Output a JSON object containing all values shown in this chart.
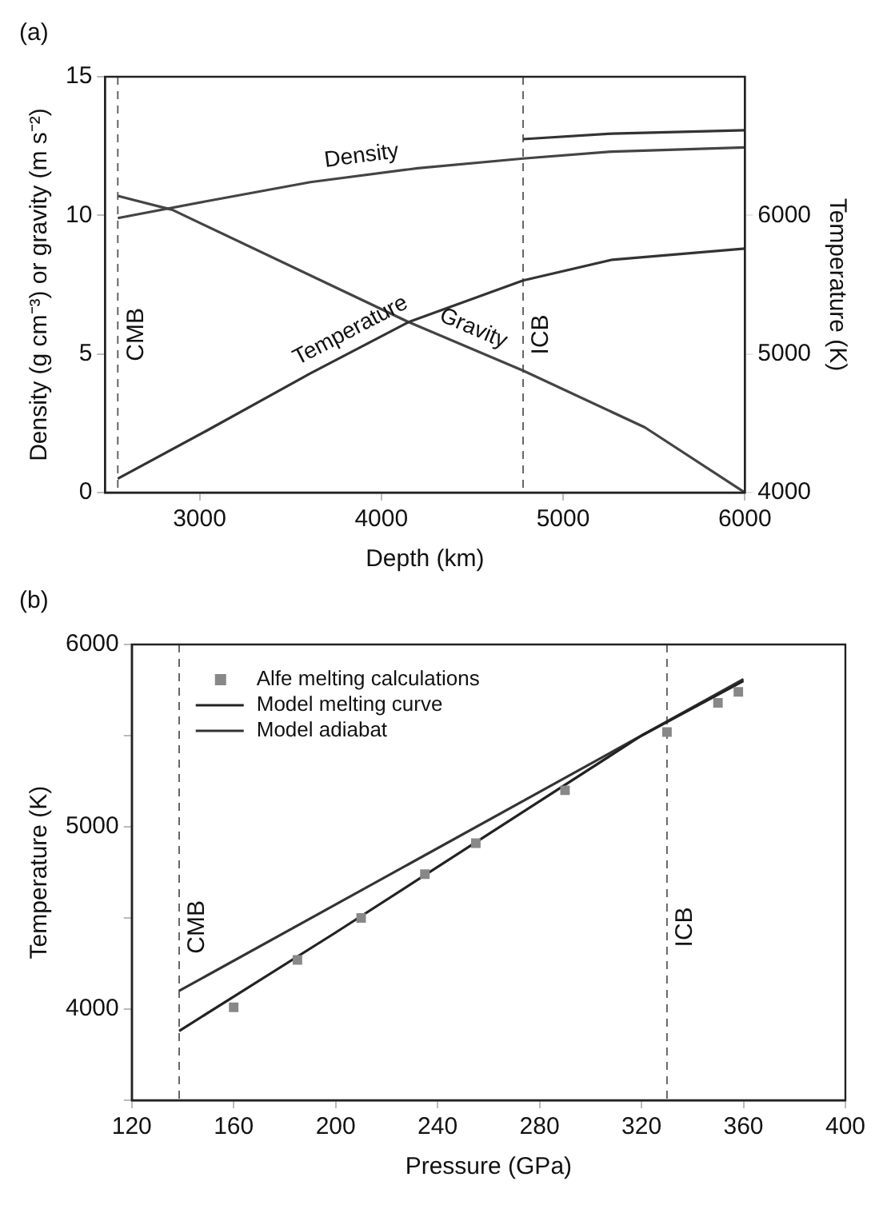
{
  "chart_data": [
    {
      "type": "line",
      "title": "(a)",
      "xlabel": "Depth (km)",
      "ylabel": "Density (g cm⁻³) or gravity (m s⁻²)",
      "y2label": "Temperature (K)",
      "xlim": [
        2480,
        6000
      ],
      "xticks": [
        3000,
        4000,
        5000,
        6000
      ],
      "ylim": [
        0,
        15
      ],
      "yticks": [
        0,
        5,
        10,
        15
      ],
      "y2lim": [
        4000,
        7000
      ],
      "y2ticks": [
        4000,
        5000,
        6000
      ],
      "grid": false,
      "legend": false,
      "marker": "none",
      "line_style": "solid",
      "series": [
        {
          "name": "Density",
          "color": "#444444",
          "x": [
            2550,
            3030,
            3610,
            4200,
            4780,
            5270,
            6000
          ],
          "values": [
            9.9,
            10.5,
            11.2,
            11.7,
            12.05,
            12.3,
            12.45
          ]
        },
        {
          "color": "#333333",
          "x": [
            4780,
            5270,
            6000
          ],
          "values": [
            12.75,
            12.95,
            13.07
          ]
        },
        {
          "name": "Temperature",
          "color": "#333333",
          "axis": "y2",
          "x": [
            2550,
            3030,
            3610,
            4150,
            4780,
            5270,
            6000
          ],
          "values": [
            4100,
            4440,
            4860,
            5230,
            5530,
            5680,
            5760
          ]
        },
        {
          "name": "Gravity",
          "color": "#444444",
          "x": [
            2550,
            2850,
            4150,
            4780,
            5450,
            6000
          ],
          "values": [
            10.7,
            10.2,
            6.15,
            4.4,
            2.35,
            0
          ]
        }
      ],
      "ref_lines": [
        {
          "axis": "x",
          "value": 2550,
          "label": "CMB",
          "color": "#666666",
          "line_style": "dashed"
        },
        {
          "axis": "x",
          "value": 4780,
          "label": "ICB",
          "color": "#666666",
          "line_style": "dashed"
        }
      ]
    },
    {
      "type": "line",
      "title": "(b)",
      "xlabel": "Pressure (GPa)",
      "ylabel": "Temperature (K)",
      "xlim": [
        120,
        400
      ],
      "xticks": [
        120,
        160,
        200,
        240,
        280,
        320,
        360,
        400
      ],
      "ylim": [
        3500,
        6000
      ],
      "yticks": [
        {
          "value": 3500,
          "label": null
        },
        4000,
        {
          "value": 4500,
          "label": null
        },
        5000,
        {
          "value": 5500,
          "label": null
        },
        6000
      ],
      "grid": false,
      "legend": "top left",
      "line_style": "solid",
      "series": [
        {
          "name": "Alfe melting calculations",
          "type": "scatter",
          "marker": "square",
          "color": "#888888",
          "x": [
            160,
            185,
            210,
            235,
            255,
            290,
            330,
            350,
            358
          ],
          "values": [
            4010,
            4270,
            4500,
            4740,
            4910,
            5200,
            5520,
            5680,
            5740
          ]
        },
        {
          "name": "Model melting curve",
          "marker": "none",
          "color": "#222222",
          "x": [
            138.6,
            200,
            260,
            320,
            360
          ],
          "values": [
            3880,
            4420,
            4960,
            5500,
            5800
          ]
        },
        {
          "name": "Model adiabat",
          "marker": "none",
          "color": "#333333",
          "x": [
            138.6,
            320,
            360
          ],
          "values": [
            4100,
            5500,
            5810
          ]
        }
      ],
      "ref_lines": [
        {
          "axis": "x",
          "value": 138.6,
          "label": "CMB",
          "color": "#666666",
          "line_style": "dashed"
        },
        {
          "axis": "x",
          "value": 330,
          "label": "ICB",
          "color": "#666666",
          "line_style": "dashed"
        }
      ]
    }
  ]
}
